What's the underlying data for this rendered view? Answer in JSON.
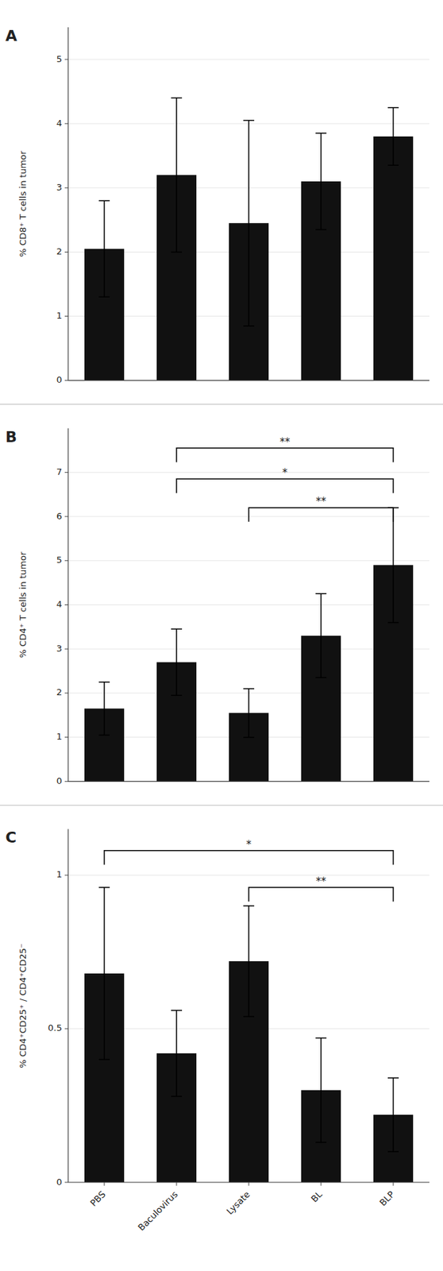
{
  "chart_data": [
    {
      "type": "bar",
      "title": "A",
      "categories": [
        "PBS",
        "Baculovirus",
        "Lysate",
        "BL",
        "BLP"
      ],
      "values": [
        2.05,
        3.2,
        2.45,
        3.1,
        3.8
      ],
      "errors": [
        0.75,
        1.2,
        1.6,
        0.75,
        0.45
      ],
      "y_label": "% CD8⁺ T cells in tumor",
      "color": "#111111",
      "ylim": [
        0,
        5.5
      ],
      "yticks": [
        0,
        1,
        2,
        3,
        4,
        5
      ],
      "tick_labels": "y",
      "annotations": []
    },
    {
      "type": "bar",
      "title": "B",
      "categories": [
        "PBS",
        "Baculovirus",
        "Lysate",
        "BL",
        "BLP"
      ],
      "values": [
        1.65,
        2.7,
        1.55,
        3.3,
        4.9
      ],
      "errors": [
        0.6,
        0.75,
        0.55,
        0.95,
        1.3
      ],
      "y_label": "% CD4⁺ T cells in tumor",
      "color": "#111111",
      "ylim": [
        0,
        8.0
      ],
      "yticks": [
        0,
        1,
        2,
        3,
        4,
        5,
        6,
        7
      ],
      "tick_labels": "y",
      "annotations": [
        {
          "x1": "Baculovirus",
          "x2": "BLP",
          "y": 7.55,
          "text": "**"
        },
        {
          "x1": "Baculovirus",
          "x2": "BLP",
          "y": 6.85,
          "text": "*"
        },
        {
          "x1": "Lysate",
          "x2": "BLP",
          "y": 6.2,
          "text": "**"
        }
      ]
    },
    {
      "type": "bar",
      "title": "C",
      "categories": [
        "PBS",
        "Baculovirus",
        "Lysate",
        "BL",
        "BLP"
      ],
      "values": [
        0.68,
        0.42,
        0.72,
        0.3,
        0.22
      ],
      "errors": [
        0.28,
        0.14,
        0.18,
        0.17,
        0.12
      ],
      "y_label": "% CD4⁺CD25⁺ / CD4⁺CD25⁻",
      "color": "#111111",
      "ylim": [
        0,
        1.15
      ],
      "yticks": [
        0,
        0.5,
        1
      ],
      "annotations": [
        {
          "x1": "PBS",
          "x2": "BLP",
          "y": 1.08,
          "text": "*"
        },
        {
          "x1": "Lysate",
          "x2": "BLP",
          "y": 0.96,
          "text": "**"
        }
      ]
    }
  ]
}
